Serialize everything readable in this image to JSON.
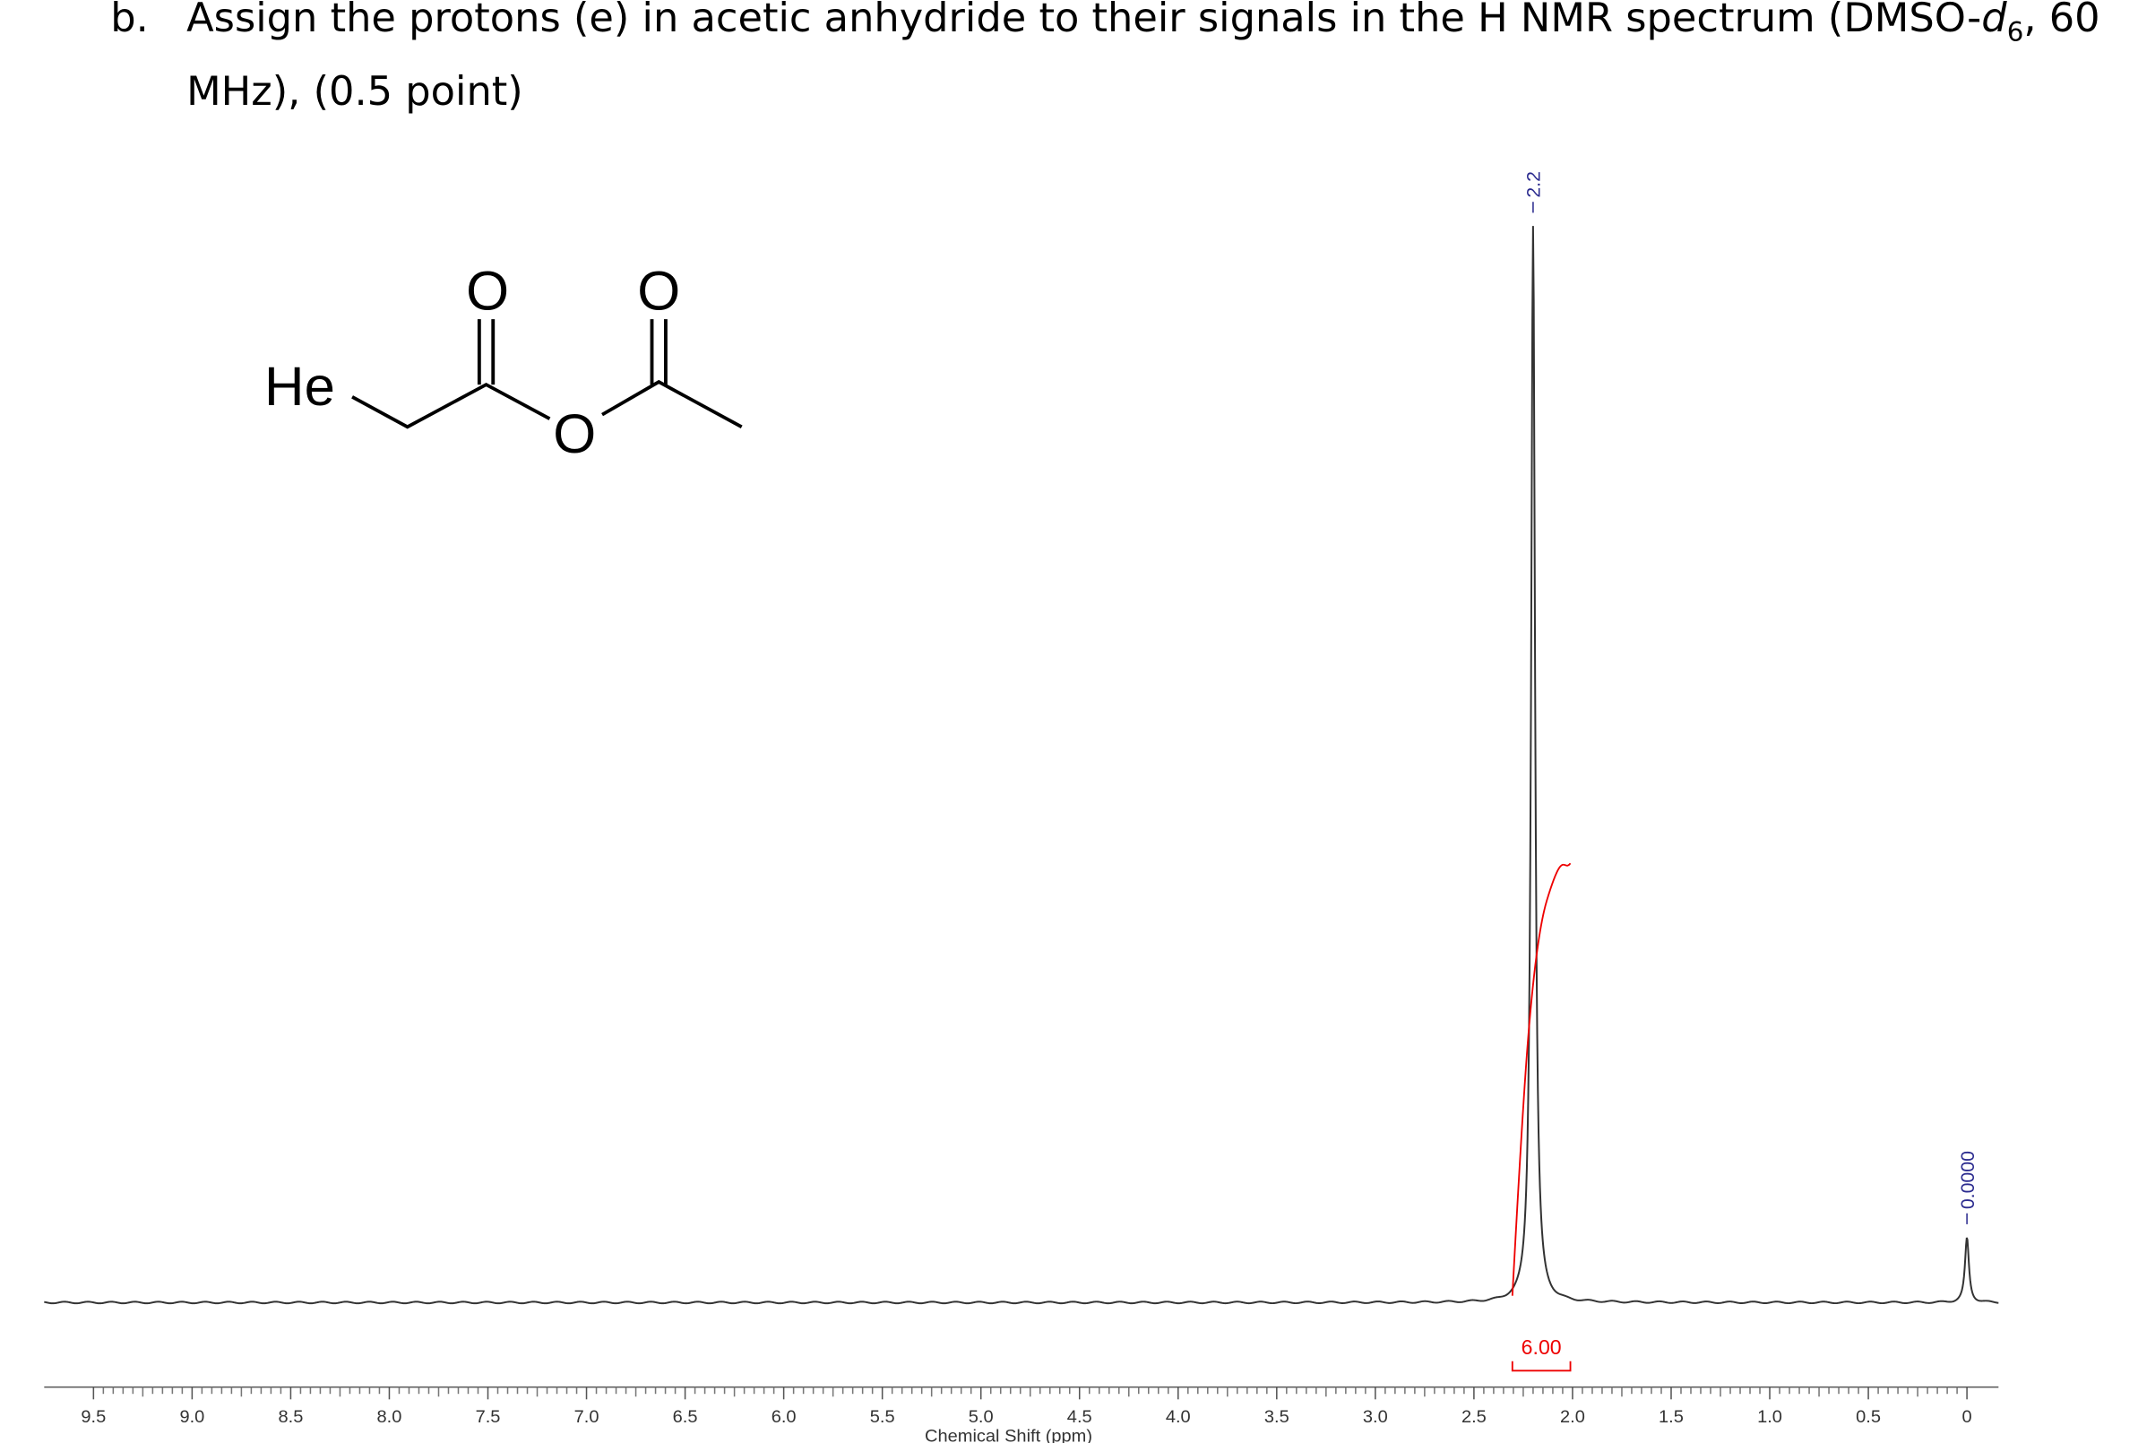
{
  "question": {
    "marker": "b.",
    "text_before": "Assign the protons (e) in acetic anhydride to their signals in the H NMR spectrum (DMSO-",
    "italic": "d",
    "subscript": "6",
    "text_after": ", 60 MHz), (0.5 point)"
  },
  "molecule": {
    "label_h": "He",
    "oxygen_1": "O",
    "oxygen_2": "O",
    "oxygen_3": "O"
  },
  "chart_data": {
    "type": "line",
    "x_label": "Chemical Shift (ppm)",
    "xlim": [
      9.75,
      -0.16
    ],
    "ylim": [
      0,
      100
    ],
    "xticks": [
      {
        "value": 9.5,
        "label": "9.5"
      },
      {
        "value": 9,
        "label": "9.0"
      },
      {
        "value": 8.5,
        "label": "8.5"
      },
      {
        "value": 8,
        "label": "8.0"
      },
      {
        "value": 7.5,
        "label": "7.5"
      },
      {
        "value": 7,
        "label": "7.0"
      },
      {
        "value": 6.5,
        "label": "6.5"
      },
      {
        "value": 6,
        "label": "6.0"
      },
      {
        "value": 5.5,
        "label": "5.5"
      },
      {
        "value": 5,
        "label": "5.0"
      },
      {
        "value": 4.5,
        "label": "4.5"
      },
      {
        "value": 4,
        "label": "4.0"
      },
      {
        "value": 3.5,
        "label": "3.5"
      },
      {
        "value": 3,
        "label": "3.0"
      },
      {
        "value": 2.5,
        "label": "2.5"
      },
      {
        "value": 2,
        "label": "2.0"
      },
      {
        "value": 1.5,
        "label": "1.5"
      },
      {
        "value": 1,
        "label": "1.0"
      },
      {
        "value": 0.5,
        "label": "0.5"
      },
      0
    ],
    "peaks": [
      {
        "x": 2.2,
        "height": 100,
        "label": 2.2
      },
      {
        "x": 0,
        "height": 6,
        "label": {
          "value": 0,
          "label": "0.0000"
        }
      }
    ],
    "integral": {
      "value": 6,
      "label": "6.00"
    }
  }
}
